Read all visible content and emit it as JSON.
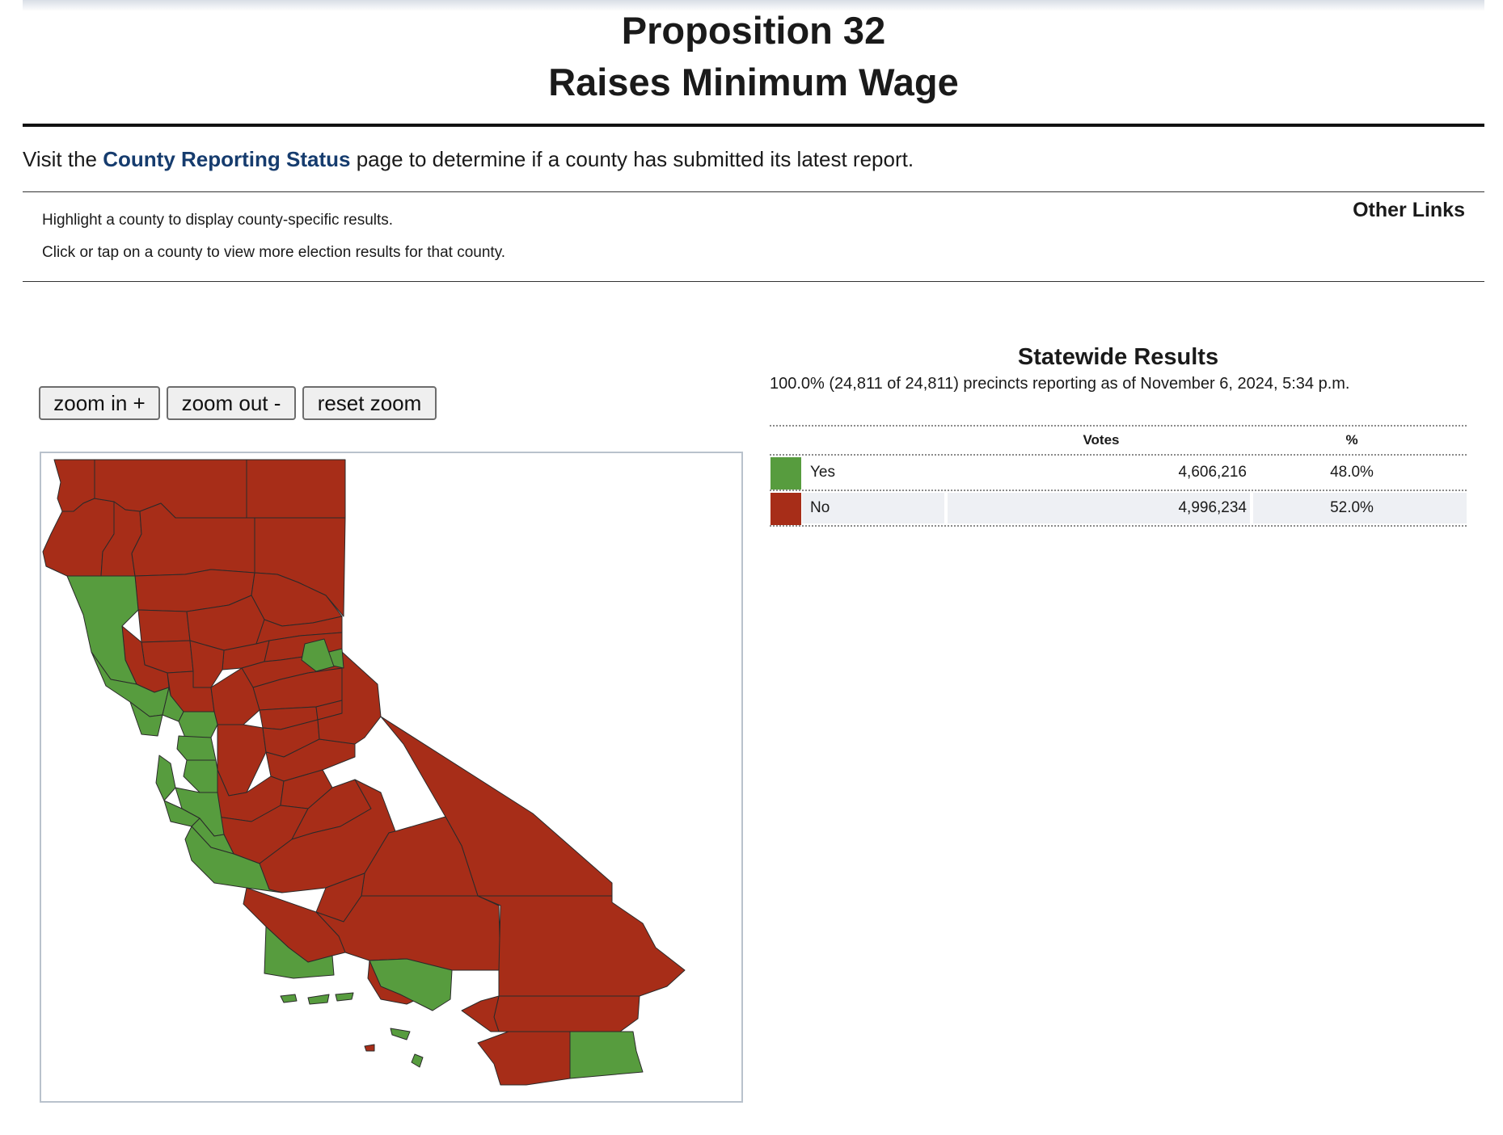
{
  "header": {
    "title_line1": "Proposition 32",
    "title_line2": "Raises Minimum Wage"
  },
  "visit": {
    "prefix": "Visit the ",
    "link_text": "County Reporting Status",
    "suffix": " page to determine if a county has submitted its latest report."
  },
  "instructions": {
    "line1": "Highlight a county to display county-specific results.",
    "line2": "Click or tap on a county to view more election results for that county."
  },
  "other_links": "Other Links",
  "zoom": {
    "zoom_in": "zoom in +",
    "zoom_out": "zoom out -",
    "reset": "reset zoom"
  },
  "colors": {
    "yes": "#579c3e",
    "no": "#a72d18"
  },
  "results": {
    "title": "Statewide Results",
    "precincts": "100.0% (24,811 of 24,811) precincts reporting as of November 6, 2024, 5:34 p.m.",
    "col_votes": "Votes",
    "col_pct": "%",
    "rows": [
      {
        "label": "Yes",
        "votes": "4,606,216",
        "pct": "48.0%"
      },
      {
        "label": "No",
        "votes": "4,996,234",
        "pct": "52.0%"
      }
    ]
  }
}
